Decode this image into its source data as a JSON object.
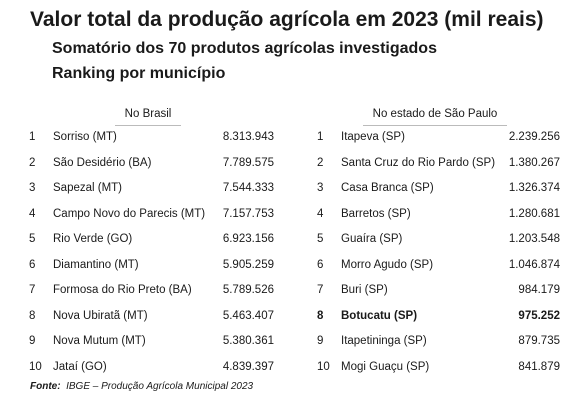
{
  "title": "Valor total da produção agrícola em 2023 (mil reais)",
  "subtitle": "Somatório dos 70 produtos agrícolas investigados",
  "subtitle2": "Ranking por município",
  "brasil": {
    "header": "No Brasil",
    "rows": [
      {
        "rank": "1",
        "city": "Sorriso (MT)",
        "value": "8.313.943"
      },
      {
        "rank": "2",
        "city": "São Desidério (BA)",
        "value": "7.789.575"
      },
      {
        "rank": "3",
        "city": "Sapezal (MT)",
        "value": "7.544.333"
      },
      {
        "rank": "4",
        "city": "Campo Novo do Parecis (MT)",
        "value": "7.157.753"
      },
      {
        "rank": "5",
        "city": "Rio Verde (GO)",
        "value": "6.923.156"
      },
      {
        "rank": "6",
        "city": "Diamantino (MT)",
        "value": "5.905.259"
      },
      {
        "rank": "7",
        "city": "Formosa do Rio Preto (BA)",
        "value": "5.789.526"
      },
      {
        "rank": "8",
        "city": "Nova Ubiratã (MT)",
        "value": "5.463.407"
      },
      {
        "rank": "9",
        "city": "Nova Mutum (MT)",
        "value": "5.380.361"
      },
      {
        "rank": "10",
        "city": "Jataí (GO)",
        "value": "4.839.397"
      }
    ]
  },
  "sp": {
    "header": "No estado de São Paulo",
    "rows": [
      {
        "rank": "1",
        "city": "Itapeva (SP)",
        "value": "2.239.256"
      },
      {
        "rank": "2",
        "city": "Santa Cruz do Rio Pardo (SP)",
        "value": "1.380.267"
      },
      {
        "rank": "3",
        "city": "Casa Branca (SP)",
        "value": "1.326.374"
      },
      {
        "rank": "4",
        "city": "Barretos (SP)",
        "value": "1.280.681"
      },
      {
        "rank": "5",
        "city": "Guaíra (SP)",
        "value": "1.203.548"
      },
      {
        "rank": "6",
        "city": "Morro Agudo (SP)",
        "value": "1.046.874"
      },
      {
        "rank": "7",
        "city": "Buri (SP)",
        "value": "984.179"
      },
      {
        "rank": "8",
        "city": "Botucatu (SP)",
        "value": "975.252"
      },
      {
        "rank": "9",
        "city": "Itapetininga (SP)",
        "value": "879.735"
      },
      {
        "rank": "10",
        "city": "Mogi Guaçu (SP)",
        "value": "841.879"
      }
    ]
  },
  "source_label": "Fonte:",
  "source_text": "IBGE – Produção Agrícola Municipal 2023"
}
